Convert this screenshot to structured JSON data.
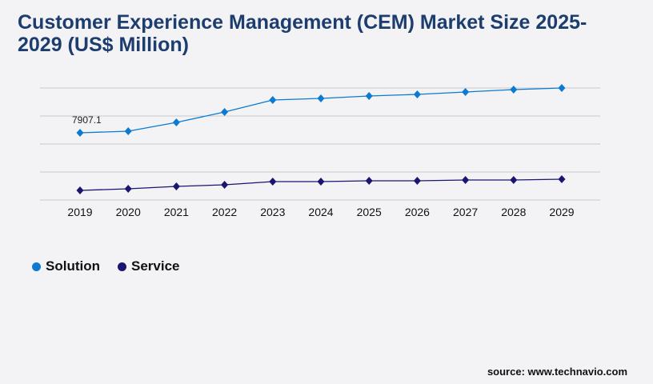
{
  "chart_data": {
    "type": "line",
    "title": "Customer Experience Management (CEM) Market Size 2025-2029 (US$ Million)",
    "categories": [
      "2019",
      "2020",
      "2021",
      "2022",
      "2023",
      "2024",
      "2025",
      "2026",
      "2027",
      "2028",
      "2029"
    ],
    "series": [
      {
        "name": "Solution",
        "color": "#0a7bd0",
        "values": [
          7907.1,
          8095,
          9131,
          10354,
          11766,
          11955,
          12237,
          12425,
          12708,
          12990,
          13178
        ]
      },
      {
        "name": "Service",
        "color": "#1a1570",
        "values": [
          1130,
          1318,
          1600,
          1788,
          2165,
          2165,
          2259,
          2259,
          2353,
          2353,
          2447
        ]
      }
    ],
    "data_labels": [
      {
        "series": "Solution",
        "category": "2019",
        "text": "7907.1"
      }
    ],
    "ylim": [
      0,
      13178
    ],
    "grid": true,
    "legend": "bottom-left",
    "xlabel": "",
    "ylabel": ""
  },
  "source": "source: www.technavio.com"
}
